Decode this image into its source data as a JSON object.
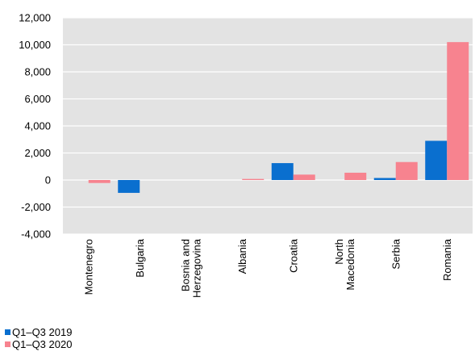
{
  "chart_data": {
    "type": "bar",
    "title": "",
    "xlabel": "",
    "ylabel": "",
    "categories": [
      "Montenegro",
      "Bulgaria",
      "Bosnia and\nHerzegovina",
      "Albania",
      "Croatia",
      "North\nMacedonia",
      "Serbia",
      "Romania"
    ],
    "series": [
      {
        "name": "Q1–Q3 2019",
        "color": "#0a6fcf",
        "values": [
          0,
          -950,
          0,
          0,
          1250,
          0,
          150,
          2900
        ]
      },
      {
        "name": "Q1–Q3 2020",
        "color": "#f7838f",
        "values": [
          -220,
          0,
          0,
          80,
          400,
          540,
          1330,
          10200
        ]
      }
    ],
    "ylim": [
      -4000,
      12000
    ],
    "yticks": [
      12000,
      10000,
      8000,
      6000,
      4000,
      2000,
      0,
      -2000,
      -4000
    ],
    "ytick_labels": [
      "12,000",
      "10,000",
      "8,000",
      "6,000",
      "4,000",
      "2,000",
      "0",
      "-2,000",
      "-4,000"
    ],
    "grid": true,
    "plot_background": "#e3e3e3",
    "legend_position": "bottom-left"
  }
}
